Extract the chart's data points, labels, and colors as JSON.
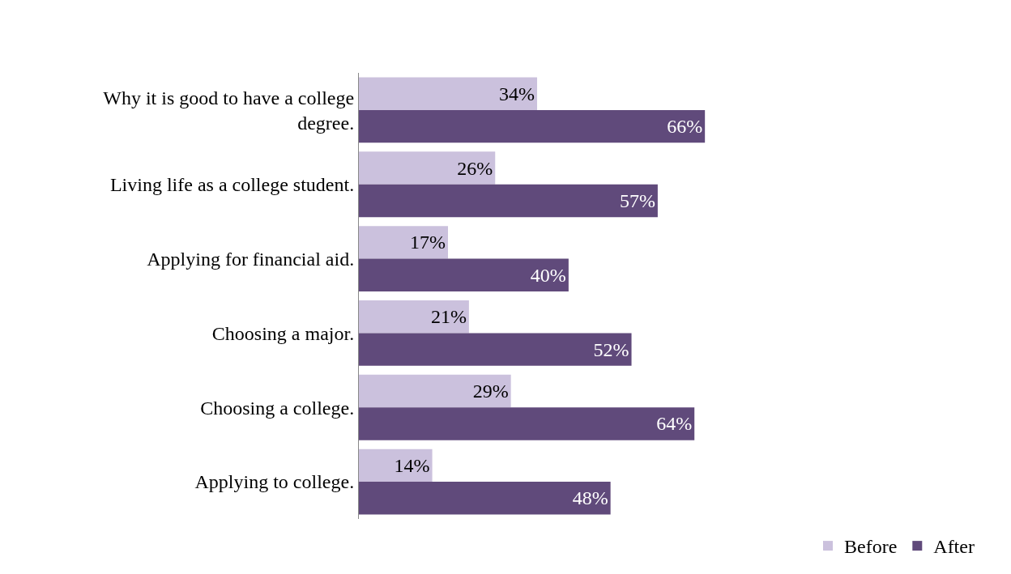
{
  "chart_data": {
    "type": "bar",
    "orientation": "horizontal",
    "categories": [
      "Why it is good to have a college degree.",
      "Living life as a college student.",
      "Applying for financial aid.",
      "Choosing a major.",
      "Choosing a college.",
      "Applying to college."
    ],
    "series": [
      {
        "name": "Before",
        "color": "#cbc1dd",
        "values": [
          34,
          26,
          17,
          21,
          29,
          14
        ],
        "value_labels": [
          "34%",
          "26%",
          "17%",
          "21%",
          "29%",
          "14%"
        ]
      },
      {
        "name": "After",
        "color": "#604a7b",
        "values": [
          66,
          57,
          40,
          52,
          64,
          48
        ],
        "value_labels": [
          "66%",
          "57%",
          "40%",
          "52%",
          "64%",
          "48%"
        ]
      }
    ],
    "legend": "bottom right"
  }
}
